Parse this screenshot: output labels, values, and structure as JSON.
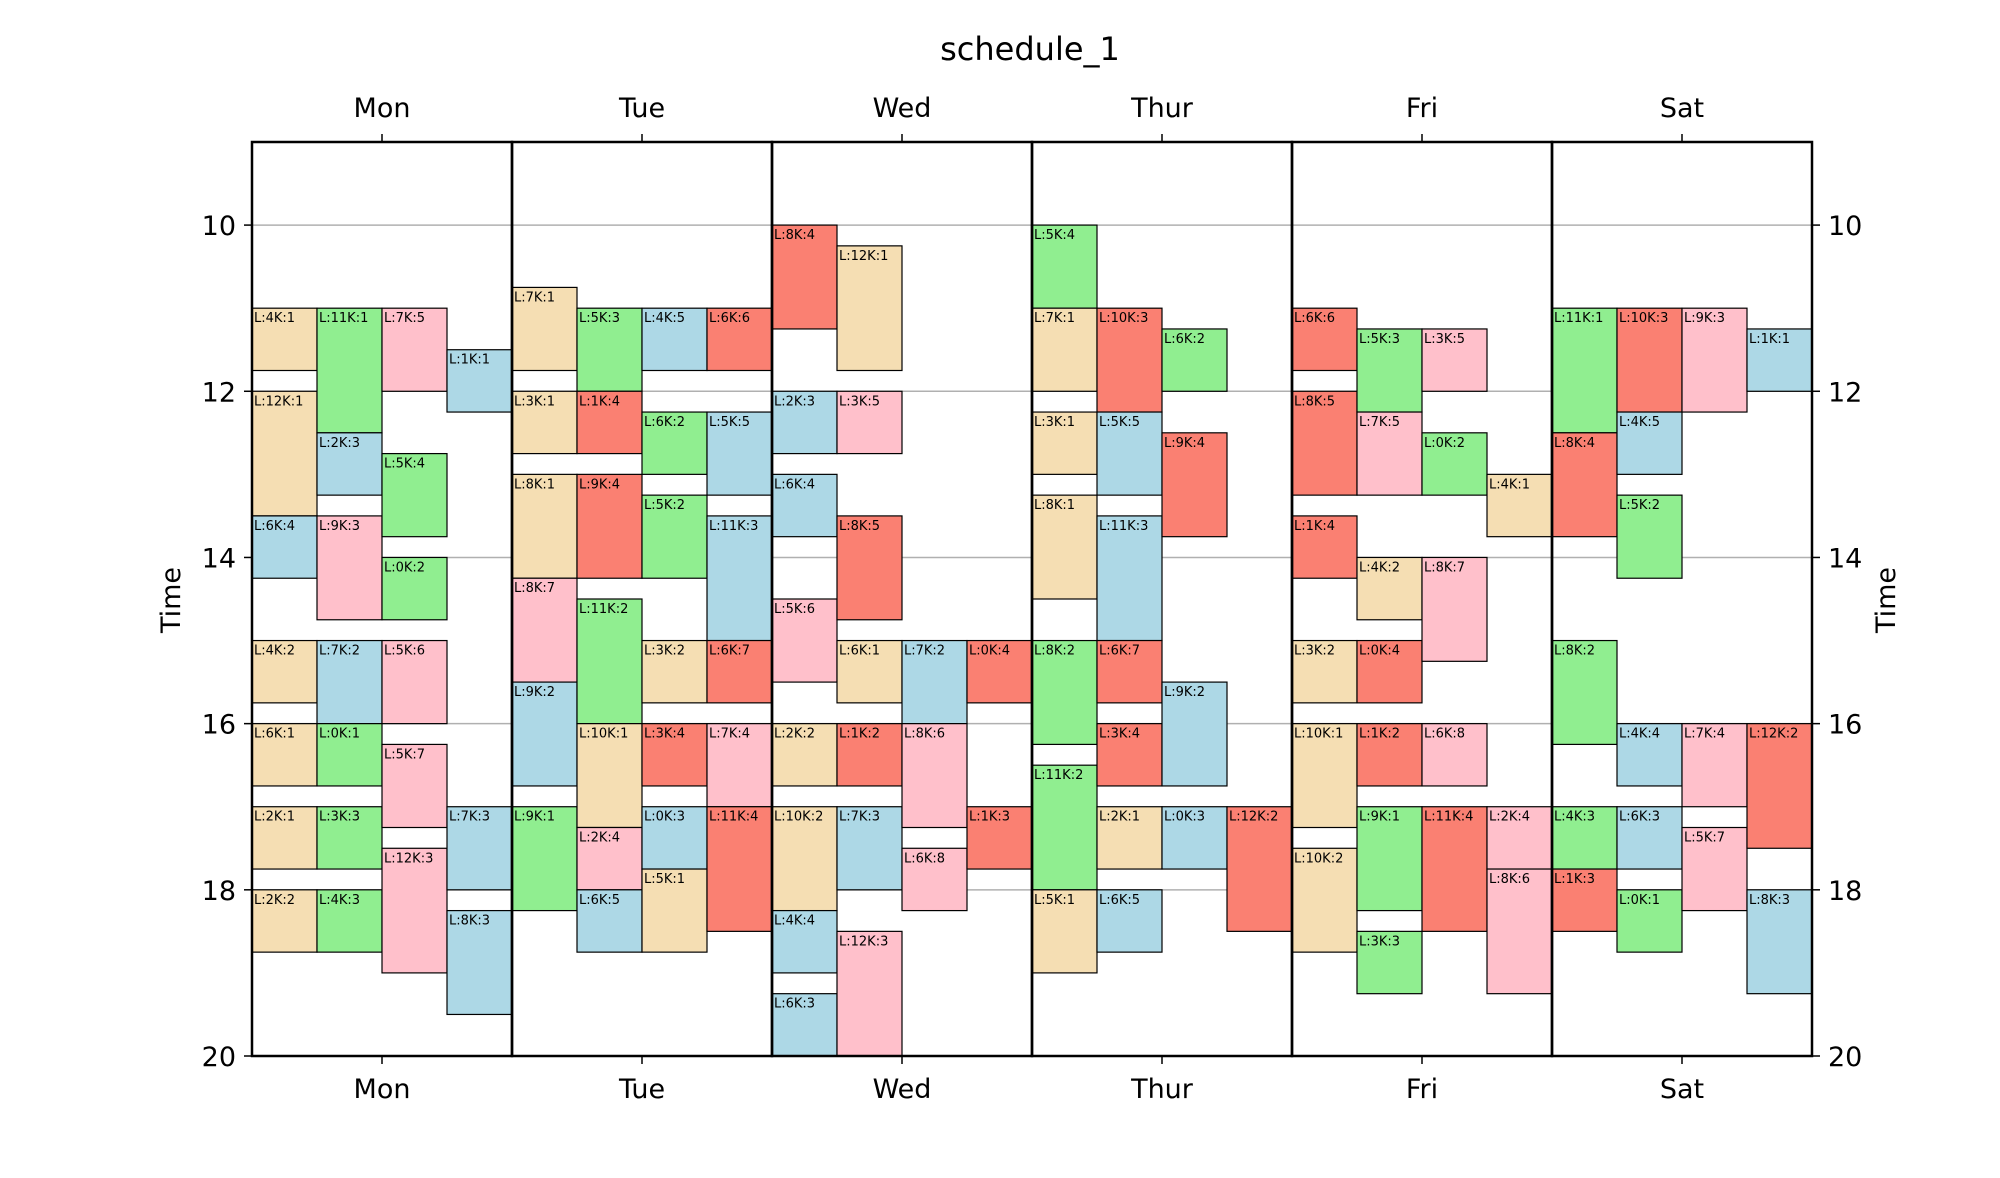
{
  "chart_data": {
    "type": "schedule",
    "title": "schedule_1",
    "ylabel": "Time",
    "ylim": [
      9,
      20
    ],
    "yticks": [
      10,
      12,
      14,
      16,
      18,
      20
    ],
    "grid": true,
    "inverted_y": true,
    "days": [
      "Mon",
      "Tue",
      "Wed",
      "Thur",
      "Fri",
      "Sat"
    ],
    "colors": {
      "tan": "#f5deb3",
      "green": "#90ee90",
      "blue": "#add8e6",
      "red": "#fa8072",
      "pink": "#ffc0cb"
    },
    "events": [
      {
        "day": 0,
        "col": 0,
        "start": 11.0,
        "end": 11.75,
        "label": "L:4K:1",
        "color": "tan"
      },
      {
        "day": 0,
        "col": 0,
        "start": 12.0,
        "end": 13.5,
        "label": "L:12K:1",
        "color": "tan"
      },
      {
        "day": 0,
        "col": 0,
        "start": 13.5,
        "end": 14.25,
        "label": "L:6K:4",
        "color": "blue"
      },
      {
        "day": 0,
        "col": 0,
        "start": 15.0,
        "end": 15.75,
        "label": "L:4K:2",
        "color": "tan"
      },
      {
        "day": 0,
        "col": 0,
        "start": 16.0,
        "end": 16.75,
        "label": "L:6K:1",
        "color": "tan"
      },
      {
        "day": 0,
        "col": 0,
        "start": 17.0,
        "end": 17.75,
        "label": "L:2K:1",
        "color": "tan"
      },
      {
        "day": 0,
        "col": 0,
        "start": 18.0,
        "end": 18.75,
        "label": "L:2K:2",
        "color": "tan"
      },
      {
        "day": 0,
        "col": 1,
        "start": 11.0,
        "end": 12.5,
        "label": "L:11K:1",
        "color": "green"
      },
      {
        "day": 0,
        "col": 1,
        "start": 12.5,
        "end": 13.25,
        "label": "L:2K:3",
        "color": "blue"
      },
      {
        "day": 0,
        "col": 1,
        "start": 13.5,
        "end": 14.75,
        "label": "L:9K:3",
        "color": "pink"
      },
      {
        "day": 0,
        "col": 1,
        "start": 15.0,
        "end": 16.0,
        "label": "L:7K:2",
        "color": "blue"
      },
      {
        "day": 0,
        "col": 1,
        "start": 16.0,
        "end": 16.75,
        "label": "L:0K:1",
        "color": "green"
      },
      {
        "day": 0,
        "col": 1,
        "start": 17.0,
        "end": 17.75,
        "label": "L:3K:3",
        "color": "green"
      },
      {
        "day": 0,
        "col": 1,
        "start": 18.0,
        "end": 18.75,
        "label": "L:4K:3",
        "color": "green"
      },
      {
        "day": 0,
        "col": 2,
        "start": 11.0,
        "end": 12.0,
        "label": "L:7K:5",
        "color": "pink"
      },
      {
        "day": 0,
        "col": 2,
        "start": 12.75,
        "end": 13.75,
        "label": "L:5K:4",
        "color": "green"
      },
      {
        "day": 0,
        "col": 2,
        "start": 14.0,
        "end": 14.75,
        "label": "L:0K:2",
        "color": "green"
      },
      {
        "day": 0,
        "col": 2,
        "start": 15.0,
        "end": 16.0,
        "label": "L:5K:6",
        "color": "pink"
      },
      {
        "day": 0,
        "col": 2,
        "start": 16.25,
        "end": 17.25,
        "label": "L:5K:7",
        "color": "pink"
      },
      {
        "day": 0,
        "col": 2,
        "start": 17.5,
        "end": 19.0,
        "label": "L:12K:3",
        "color": "pink"
      },
      {
        "day": 0,
        "col": 3,
        "start": 11.5,
        "end": 12.25,
        "label": "L:1K:1",
        "color": "blue"
      },
      {
        "day": 0,
        "col": 3,
        "start": 17.0,
        "end": 18.0,
        "label": "L:7K:3",
        "color": "blue"
      },
      {
        "day": 0,
        "col": 3,
        "start": 18.25,
        "end": 19.5,
        "label": "L:8K:3",
        "color": "blue"
      },
      {
        "day": 1,
        "col": 0,
        "start": 10.75,
        "end": 11.75,
        "label": "L:7K:1",
        "color": "tan"
      },
      {
        "day": 1,
        "col": 0,
        "start": 12.0,
        "end": 12.75,
        "label": "L:3K:1",
        "color": "tan"
      },
      {
        "day": 1,
        "col": 0,
        "start": 13.0,
        "end": 14.25,
        "label": "L:8K:1",
        "color": "tan"
      },
      {
        "day": 1,
        "col": 0,
        "start": 14.25,
        "end": 15.5,
        "label": "L:8K:7",
        "color": "pink"
      },
      {
        "day": 1,
        "col": 0,
        "start": 15.5,
        "end": 16.75,
        "label": "L:9K:2",
        "color": "blue"
      },
      {
        "day": 1,
        "col": 0,
        "start": 17.0,
        "end": 18.25,
        "label": "L:9K:1",
        "color": "green"
      },
      {
        "day": 1,
        "col": 1,
        "start": 11.0,
        "end": 12.0,
        "label": "L:5K:3",
        "color": "green"
      },
      {
        "day": 1,
        "col": 1,
        "start": 12.0,
        "end": 12.75,
        "label": "L:1K:4",
        "color": "red"
      },
      {
        "day": 1,
        "col": 1,
        "start": 13.0,
        "end": 14.25,
        "label": "L:9K:4",
        "color": "red"
      },
      {
        "day": 1,
        "col": 1,
        "start": 14.5,
        "end": 16.0,
        "label": "L:11K:2",
        "color": "green"
      },
      {
        "day": 1,
        "col": 1,
        "start": 16.0,
        "end": 17.25,
        "label": "L:10K:1",
        "color": "tan"
      },
      {
        "day": 1,
        "col": 1,
        "start": 17.25,
        "end": 18.0,
        "label": "L:2K:4",
        "color": "pink"
      },
      {
        "day": 1,
        "col": 1,
        "start": 18.0,
        "end": 18.75,
        "label": "L:6K:5",
        "color": "blue"
      },
      {
        "day": 1,
        "col": 2,
        "start": 11.0,
        "end": 11.75,
        "label": "L:4K:5",
        "color": "blue"
      },
      {
        "day": 1,
        "col": 2,
        "start": 12.25,
        "end": 13.0,
        "label": "L:6K:2",
        "color": "green"
      },
      {
        "day": 1,
        "col": 2,
        "start": 13.25,
        "end": 14.25,
        "label": "L:5K:2",
        "color": "green"
      },
      {
        "day": 1,
        "col": 2,
        "start": 15.0,
        "end": 15.75,
        "label": "L:3K:2",
        "color": "tan"
      },
      {
        "day": 1,
        "col": 2,
        "start": 16.0,
        "end": 16.75,
        "label": "L:3K:4",
        "color": "red"
      },
      {
        "day": 1,
        "col": 2,
        "start": 17.0,
        "end": 17.75,
        "label": "L:0K:3",
        "color": "blue"
      },
      {
        "day": 1,
        "col": 2,
        "start": 17.75,
        "end": 18.75,
        "label": "L:5K:1",
        "color": "tan"
      },
      {
        "day": 1,
        "col": 3,
        "start": 11.0,
        "end": 11.75,
        "label": "L:6K:6",
        "color": "red"
      },
      {
        "day": 1,
        "col": 3,
        "start": 12.25,
        "end": 13.25,
        "label": "L:5K:5",
        "color": "blue"
      },
      {
        "day": 1,
        "col": 3,
        "start": 13.5,
        "end": 15.0,
        "label": "L:11K:3",
        "color": "blue"
      },
      {
        "day": 1,
        "col": 3,
        "start": 15.0,
        "end": 15.75,
        "label": "L:6K:7",
        "color": "red"
      },
      {
        "day": 1,
        "col": 3,
        "start": 16.0,
        "end": 17.0,
        "label": "L:7K:4",
        "color": "pink"
      },
      {
        "day": 1,
        "col": 3,
        "start": 17.0,
        "end": 18.5,
        "label": "L:11K:4",
        "color": "red"
      },
      {
        "day": 2,
        "col": 0,
        "start": 10.0,
        "end": 11.25,
        "label": "L:8K:4",
        "color": "red"
      },
      {
        "day": 2,
        "col": 0,
        "start": 12.0,
        "end": 12.75,
        "label": "L:2K:3",
        "color": "blue"
      },
      {
        "day": 2,
        "col": 0,
        "start": 13.0,
        "end": 13.75,
        "label": "L:6K:4",
        "color": "blue"
      },
      {
        "day": 2,
        "col": 0,
        "start": 14.5,
        "end": 15.5,
        "label": "L:5K:6",
        "color": "pink"
      },
      {
        "day": 2,
        "col": 0,
        "start": 16.0,
        "end": 16.75,
        "label": "L:2K:2",
        "color": "tan"
      },
      {
        "day": 2,
        "col": 0,
        "start": 17.0,
        "end": 18.25,
        "label": "L:10K:2",
        "color": "tan"
      },
      {
        "day": 2,
        "col": 0,
        "start": 18.25,
        "end": 19.0,
        "label": "L:4K:4",
        "color": "blue"
      },
      {
        "day": 2,
        "col": 0,
        "start": 19.25,
        "end": 20.0,
        "label": "L:6K:3",
        "color": "blue"
      },
      {
        "day": 2,
        "col": 1,
        "start": 10.25,
        "end": 11.75,
        "label": "L:12K:1",
        "color": "tan"
      },
      {
        "day": 2,
        "col": 1,
        "start": 12.0,
        "end": 12.75,
        "label": "L:3K:5",
        "color": "pink"
      },
      {
        "day": 2,
        "col": 1,
        "start": 13.5,
        "end": 14.75,
        "label": "L:8K:5",
        "color": "red"
      },
      {
        "day": 2,
        "col": 1,
        "start": 15.0,
        "end": 15.75,
        "label": "L:6K:1",
        "color": "tan"
      },
      {
        "day": 2,
        "col": 1,
        "start": 16.0,
        "end": 16.75,
        "label": "L:1K:2",
        "color": "red"
      },
      {
        "day": 2,
        "col": 1,
        "start": 17.0,
        "end": 18.0,
        "label": "L:7K:3",
        "color": "blue"
      },
      {
        "day": 2,
        "col": 1,
        "start": 18.5,
        "end": 20.0,
        "label": "L:12K:3",
        "color": "pink"
      },
      {
        "day": 2,
        "col": 2,
        "start": 15.0,
        "end": 16.0,
        "label": "L:7K:2",
        "color": "blue"
      },
      {
        "day": 2,
        "col": 2,
        "start": 16.0,
        "end": 17.25,
        "label": "L:8K:6",
        "color": "pink"
      },
      {
        "day": 2,
        "col": 2,
        "start": 17.5,
        "end": 18.25,
        "label": "L:6K:8",
        "color": "pink"
      },
      {
        "day": 2,
        "col": 3,
        "start": 15.0,
        "end": 15.75,
        "label": "L:0K:4",
        "color": "red"
      },
      {
        "day": 2,
        "col": 3,
        "start": 17.0,
        "end": 17.75,
        "label": "L:1K:3",
        "color": "red"
      },
      {
        "day": 3,
        "col": 0,
        "start": 10.0,
        "end": 11.0,
        "label": "L:5K:4",
        "color": "green"
      },
      {
        "day": 3,
        "col": 0,
        "start": 11.0,
        "end": 12.0,
        "label": "L:7K:1",
        "color": "tan"
      },
      {
        "day": 3,
        "col": 0,
        "start": 12.25,
        "end": 13.0,
        "label": "L:3K:1",
        "color": "tan"
      },
      {
        "day": 3,
        "col": 0,
        "start": 13.25,
        "end": 14.5,
        "label": "L:8K:1",
        "color": "tan"
      },
      {
        "day": 3,
        "col": 0,
        "start": 15.0,
        "end": 16.25,
        "label": "L:8K:2",
        "color": "green"
      },
      {
        "day": 3,
        "col": 0,
        "start": 16.5,
        "end": 18.0,
        "label": "L:11K:2",
        "color": "green"
      },
      {
        "day": 3,
        "col": 0,
        "start": 18.0,
        "end": 19.0,
        "label": "L:5K:1",
        "color": "tan"
      },
      {
        "day": 3,
        "col": 1,
        "start": 11.0,
        "end": 12.25,
        "label": "L:10K:3",
        "color": "red"
      },
      {
        "day": 3,
        "col": 1,
        "start": 12.25,
        "end": 13.25,
        "label": "L:5K:5",
        "color": "blue"
      },
      {
        "day": 3,
        "col": 1,
        "start": 13.5,
        "end": 15.0,
        "label": "L:11K:3",
        "color": "blue"
      },
      {
        "day": 3,
        "col": 1,
        "start": 15.0,
        "end": 15.75,
        "label": "L:6K:7",
        "color": "red"
      },
      {
        "day": 3,
        "col": 1,
        "start": 16.0,
        "end": 16.75,
        "label": "L:3K:4",
        "color": "red"
      },
      {
        "day": 3,
        "col": 1,
        "start": 17.0,
        "end": 17.75,
        "label": "L:2K:1",
        "color": "tan"
      },
      {
        "day": 3,
        "col": 1,
        "start": 18.0,
        "end": 18.75,
        "label": "L:6K:5",
        "color": "blue"
      },
      {
        "day": 3,
        "col": 2,
        "start": 11.25,
        "end": 12.0,
        "label": "L:6K:2",
        "color": "green"
      },
      {
        "day": 3,
        "col": 2,
        "start": 12.5,
        "end": 13.75,
        "label": "L:9K:4",
        "color": "red"
      },
      {
        "day": 3,
        "col": 2,
        "start": 15.5,
        "end": 16.75,
        "label": "L:9K:2",
        "color": "blue"
      },
      {
        "day": 3,
        "col": 2,
        "start": 17.0,
        "end": 17.75,
        "label": "L:0K:3",
        "color": "blue"
      },
      {
        "day": 3,
        "col": 3,
        "start": 17.0,
        "end": 18.5,
        "label": "L:12K:2",
        "color": "red"
      },
      {
        "day": 4,
        "col": 0,
        "start": 11.0,
        "end": 11.75,
        "label": "L:6K:6",
        "color": "red"
      },
      {
        "day": 4,
        "col": 0,
        "start": 12.0,
        "end": 13.25,
        "label": "L:8K:5",
        "color": "red"
      },
      {
        "day": 4,
        "col": 0,
        "start": 13.5,
        "end": 14.25,
        "label": "L:1K:4",
        "color": "red"
      },
      {
        "day": 4,
        "col": 0,
        "start": 15.0,
        "end": 15.75,
        "label": "L:3K:2",
        "color": "tan"
      },
      {
        "day": 4,
        "col": 0,
        "start": 16.0,
        "end": 17.25,
        "label": "L:10K:1",
        "color": "tan"
      },
      {
        "day": 4,
        "col": 0,
        "start": 17.5,
        "end": 18.75,
        "label": "L:10K:2",
        "color": "tan"
      },
      {
        "day": 4,
        "col": 1,
        "start": 11.25,
        "end": 12.25,
        "label": "L:5K:3",
        "color": "green"
      },
      {
        "day": 4,
        "col": 1,
        "start": 12.25,
        "end": 13.25,
        "label": "L:7K:5",
        "color": "pink"
      },
      {
        "day": 4,
        "col": 1,
        "start": 14.0,
        "end": 14.75,
        "label": "L:4K:2",
        "color": "tan"
      },
      {
        "day": 4,
        "col": 1,
        "start": 15.0,
        "end": 15.75,
        "label": "L:0K:4",
        "color": "red"
      },
      {
        "day": 4,
        "col": 1,
        "start": 16.0,
        "end": 16.75,
        "label": "L:1K:2",
        "color": "red"
      },
      {
        "day": 4,
        "col": 1,
        "start": 17.0,
        "end": 18.25,
        "label": "L:9K:1",
        "color": "green"
      },
      {
        "day": 4,
        "col": 1,
        "start": 18.5,
        "end": 19.25,
        "label": "L:3K:3",
        "color": "green"
      },
      {
        "day": 4,
        "col": 2,
        "start": 11.25,
        "end": 12.0,
        "label": "L:3K:5",
        "color": "pink"
      },
      {
        "day": 4,
        "col": 2,
        "start": 12.5,
        "end": 13.25,
        "label": "L:0K:2",
        "color": "green"
      },
      {
        "day": 4,
        "col": 2,
        "start": 14.0,
        "end": 15.25,
        "label": "L:8K:7",
        "color": "pink"
      },
      {
        "day": 4,
        "col": 2,
        "start": 16.0,
        "end": 16.75,
        "label": "L:6K:8",
        "color": "pink"
      },
      {
        "day": 4,
        "col": 2,
        "start": 17.0,
        "end": 18.5,
        "label": "L:11K:4",
        "color": "red"
      },
      {
        "day": 4,
        "col": 3,
        "start": 13.0,
        "end": 13.75,
        "label": "L:4K:1",
        "color": "tan"
      },
      {
        "day": 4,
        "col": 3,
        "start": 17.0,
        "end": 17.75,
        "label": "L:2K:4",
        "color": "pink"
      },
      {
        "day": 4,
        "col": 3,
        "start": 17.75,
        "end": 19.25,
        "label": "L:8K:6",
        "color": "pink"
      },
      {
        "day": 5,
        "col": 0,
        "start": 11.0,
        "end": 12.5,
        "label": "L:11K:1",
        "color": "green"
      },
      {
        "day": 5,
        "col": 0,
        "start": 12.5,
        "end": 13.75,
        "label": "L:8K:4",
        "color": "red"
      },
      {
        "day": 5,
        "col": 0,
        "start": 15.0,
        "end": 16.25,
        "label": "L:8K:2",
        "color": "green"
      },
      {
        "day": 5,
        "col": 0,
        "start": 17.0,
        "end": 17.75,
        "label": "L:4K:3",
        "color": "green"
      },
      {
        "day": 5,
        "col": 0,
        "start": 17.75,
        "end": 18.5,
        "label": "L:1K:3",
        "color": "red"
      },
      {
        "day": 5,
        "col": 1,
        "start": 11.0,
        "end": 12.25,
        "label": "L:10K:3",
        "color": "red"
      },
      {
        "day": 5,
        "col": 1,
        "start": 12.25,
        "end": 13.0,
        "label": "L:4K:5",
        "color": "blue"
      },
      {
        "day": 5,
        "col": 1,
        "start": 13.25,
        "end": 14.25,
        "label": "L:5K:2",
        "color": "green"
      },
      {
        "day": 5,
        "col": 1,
        "start": 16.0,
        "end": 16.75,
        "label": "L:4K:4",
        "color": "blue"
      },
      {
        "day": 5,
        "col": 1,
        "start": 17.0,
        "end": 17.75,
        "label": "L:6K:3",
        "color": "blue"
      },
      {
        "day": 5,
        "col": 1,
        "start": 18.0,
        "end": 18.75,
        "label": "L:0K:1",
        "color": "green"
      },
      {
        "day": 5,
        "col": 2,
        "start": 11.0,
        "end": 12.25,
        "label": "L:9K:3",
        "color": "pink"
      },
      {
        "day": 5,
        "col": 2,
        "start": 16.0,
        "end": 17.0,
        "label": "L:7K:4",
        "color": "pink"
      },
      {
        "day": 5,
        "col": 2,
        "start": 17.25,
        "end": 18.25,
        "label": "L:5K:7",
        "color": "pink"
      },
      {
        "day": 5,
        "col": 3,
        "start": 11.25,
        "end": 12.0,
        "label": "L:1K:1",
        "color": "blue"
      },
      {
        "day": 5,
        "col": 3,
        "start": 16.0,
        "end": 17.5,
        "label": "L:12K:2",
        "color": "red"
      },
      {
        "day": 5,
        "col": 3,
        "start": 18.0,
        "end": 19.25,
        "label": "L:8K:3",
        "color": "blue"
      }
    ]
  }
}
